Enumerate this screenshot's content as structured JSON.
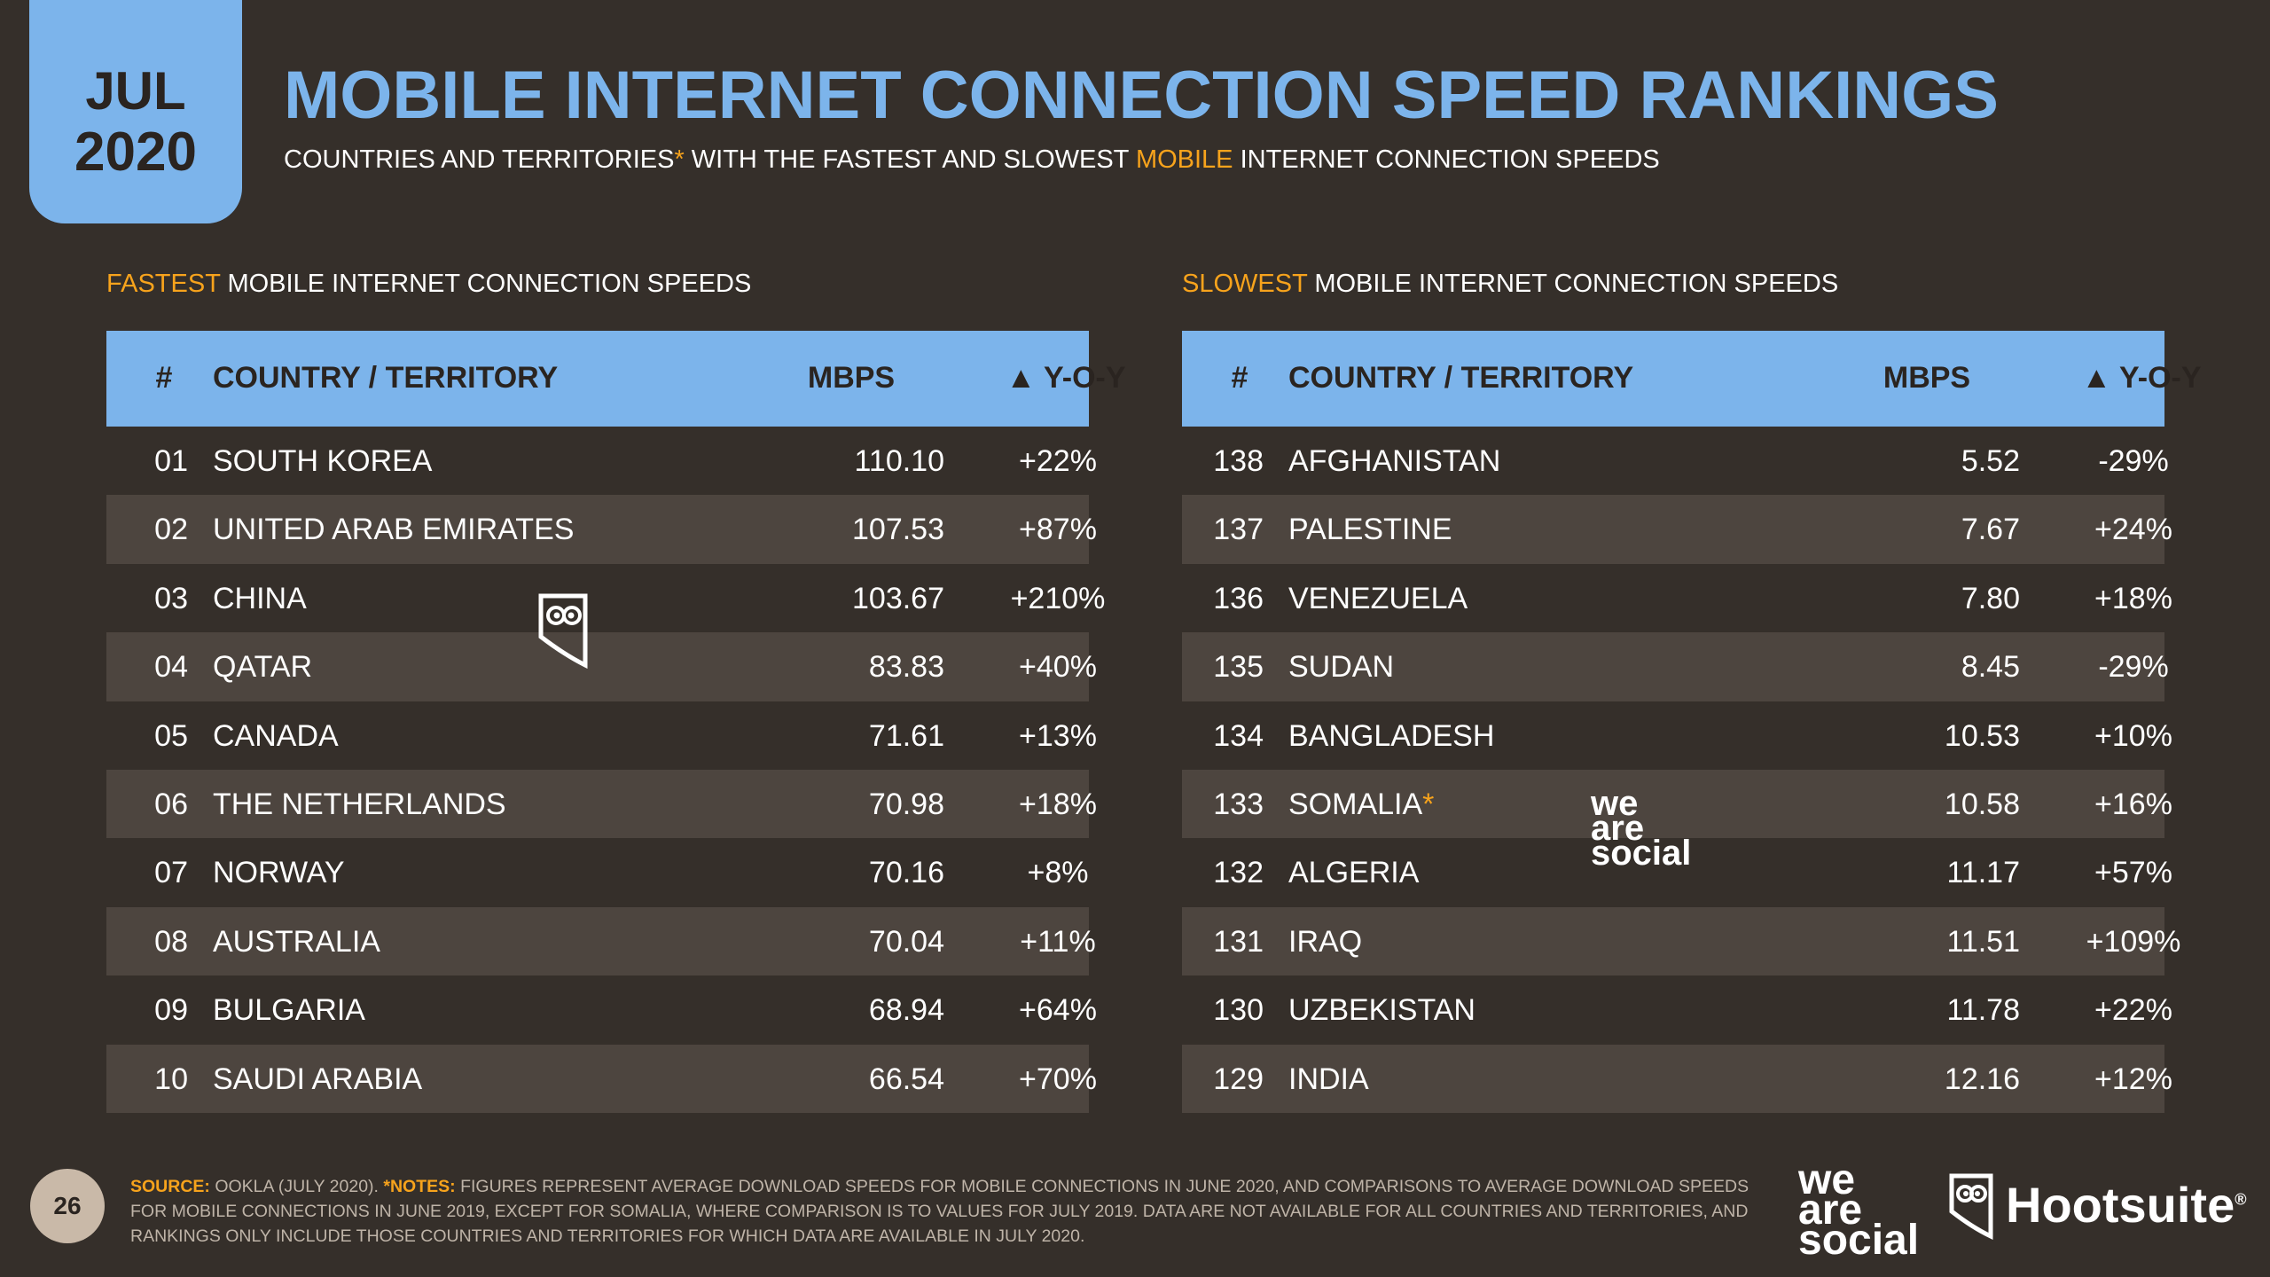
{
  "header": {
    "month": "JUL",
    "year": "2020",
    "title": "MOBILE INTERNET CONNECTION SPEED RANKINGS",
    "subtitle_part1": "COUNTRIES AND TERRITORIES",
    "subtitle_asterisk": "*",
    "subtitle_part2": " WITH THE FASTEST AND SLOWEST ",
    "subtitle_highlight": "MOBILE",
    "subtitle_part3": " INTERNET CONNECTION SPEEDS"
  },
  "fastest": {
    "label_highlight": "FASTEST",
    "label_rest": " MOBILE INTERNET CONNECTION SPEEDS",
    "columns": [
      "#",
      "COUNTRY / TERRITORY",
      "MBPS",
      "▲ Y-O-Y"
    ],
    "rows": [
      {
        "rank": "01",
        "country": "SOUTH KOREA",
        "mbps": "110.10",
        "yoy": "+22%"
      },
      {
        "rank": "02",
        "country": "UNITED ARAB EMIRATES",
        "mbps": "107.53",
        "yoy": "+87%"
      },
      {
        "rank": "03",
        "country": "CHINA",
        "mbps": "103.67",
        "yoy": "+210%"
      },
      {
        "rank": "04",
        "country": "QATAR",
        "mbps": "83.83",
        "yoy": "+40%"
      },
      {
        "rank": "05",
        "country": "CANADA",
        "mbps": "71.61",
        "yoy": "+13%"
      },
      {
        "rank": "06",
        "country": "THE NETHERLANDS",
        "mbps": "70.98",
        "yoy": "+18%"
      },
      {
        "rank": "07",
        "country": "NORWAY",
        "mbps": "70.16",
        "yoy": "+8%"
      },
      {
        "rank": "08",
        "country": "AUSTRALIA",
        "mbps": "70.04",
        "yoy": "+11%"
      },
      {
        "rank": "09",
        "country": "BULGARIA",
        "mbps": "68.94",
        "yoy": "+64%"
      },
      {
        "rank": "10",
        "country": "SAUDI ARABIA",
        "mbps": "66.54",
        "yoy": "+70%"
      }
    ]
  },
  "slowest": {
    "label_highlight": "SLOWEST",
    "label_rest": " MOBILE INTERNET CONNECTION SPEEDS",
    "columns": [
      "#",
      "COUNTRY / TERRITORY",
      "MBPS",
      "▲ Y-O-Y"
    ],
    "rows": [
      {
        "rank": "138",
        "country": "AFGHANISTAN",
        "mbps": "5.52",
        "yoy": "-29%"
      },
      {
        "rank": "137",
        "country": "PALESTINE",
        "mbps": "7.67",
        "yoy": "+24%"
      },
      {
        "rank": "136",
        "country": "VENEZUELA",
        "mbps": "7.80",
        "yoy": "+18%"
      },
      {
        "rank": "135",
        "country": "SUDAN",
        "mbps": "8.45",
        "yoy": "-29%"
      },
      {
        "rank": "134",
        "country": "BANGLADESH",
        "mbps": "10.53",
        "yoy": "+10%"
      },
      {
        "rank": "133",
        "country": "SOMALIA",
        "mark": "*",
        "mbps": "10.58",
        "yoy": "+16%"
      },
      {
        "rank": "132",
        "country": "ALGERIA",
        "mbps": "11.17",
        "yoy": "+57%"
      },
      {
        "rank": "131",
        "country": "IRAQ",
        "mbps": "11.51",
        "yoy": "+109%"
      },
      {
        "rank": "130",
        "country": "UZBEKISTAN",
        "mbps": "11.78",
        "yoy": "+22%"
      },
      {
        "rank": "129",
        "country": "INDIA",
        "mbps": "12.16",
        "yoy": "+12%"
      }
    ]
  },
  "footer": {
    "page_number": "26",
    "source_label": "SOURCE:",
    "source_text": " OOKLA (JULY 2020). ",
    "notes_label": "*NOTES:",
    "notes_text": " FIGURES REPRESENT AVERAGE DOWNLOAD SPEEDS FOR MOBILE CONNECTIONS IN JUNE 2020, AND COMPARISONS TO AVERAGE DOWNLOAD SPEEDS FOR MOBILE CONNECTIONS IN JUNE 2019, EXCEPT FOR SOMALIA, WHERE COMPARISON IS TO VALUES FOR JULY 2019. DATA ARE NOT AVAILABLE FOR ALL COUNTRIES AND TERRITORIES, AND RANKINGS ONLY INCLUDE THOSE COUNTRIES AND TERRITORIES FOR WHICH DATA ARE AVAILABLE IN JULY 2020."
  },
  "logos": {
    "we_are_social": [
      "we",
      "are",
      "social"
    ],
    "hootsuite": "Hootsuite",
    "hootsuite_mark": "®"
  },
  "colors": {
    "background": "#352f2a",
    "accent_blue": "#7cb4eb",
    "accent_orange": "#f7a31c",
    "row_alt": "#4d453f"
  },
  "icons": [
    "owl-icon",
    "hootsuite-owl-icon"
  ]
}
